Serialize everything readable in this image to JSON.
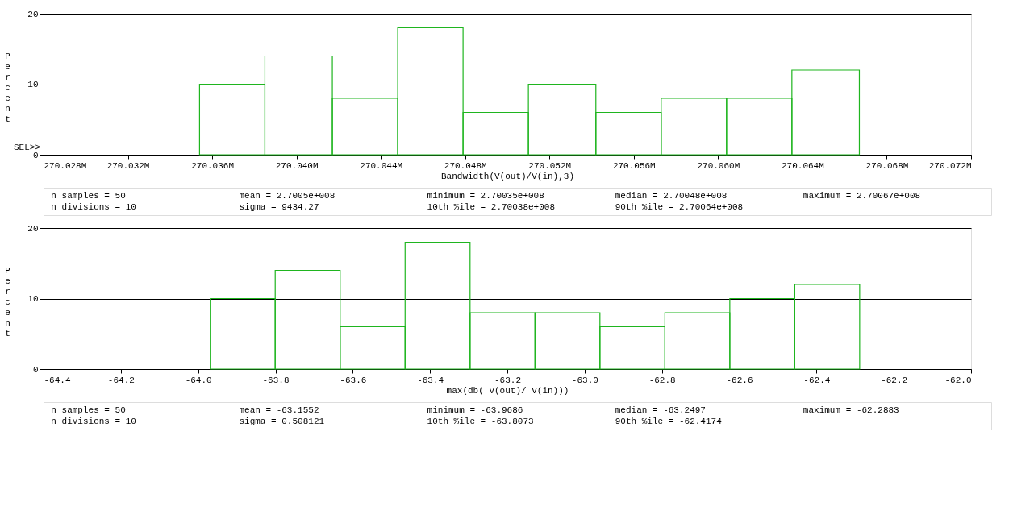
{
  "chart_data": [
    {
      "type": "histogram",
      "xlabel": "Bandwidth(V(out)/V(in),3)",
      "ylabel": "Percent",
      "bins": [
        270.0354,
        270.0385,
        270.0417,
        270.0448,
        270.0479,
        270.051,
        270.0542,
        270.0573,
        270.0604,
        270.0635,
        270.0667
      ],
      "values": [
        10,
        14,
        8,
        18,
        6,
        10,
        6,
        8,
        8,
        12
      ],
      "color": "#1fb51f",
      "xlim": [
        270.028,
        270.072
      ],
      "xticks": [
        {
          "value": 270.028,
          "label": "270.028M"
        },
        {
          "value": 270.032,
          "label": "270.032M"
        },
        {
          "value": 270.036,
          "label": "270.036M"
        },
        {
          "value": 270.04,
          "label": "270.040M"
        },
        {
          "value": 270.044,
          "label": "270.044M"
        },
        {
          "value": 270.048,
          "label": "270.048M"
        },
        {
          "value": 270.052,
          "label": "270.052M"
        },
        {
          "value": 270.056,
          "label": "270.056M"
        },
        {
          "value": 270.06,
          "label": "270.060M"
        },
        {
          "value": 270.064,
          "label": "270.064M"
        },
        {
          "value": 270.068,
          "label": "270.068M"
        },
        {
          "value": 270.072,
          "label": "270.072M"
        }
      ],
      "ylim": [
        0,
        20
      ],
      "yticks": [
        0,
        10,
        20
      ],
      "grid": "y",
      "annotations": [
        "n samples = 50",
        "mean = 2.7005e+008",
        "minimum = 2.70035e+008",
        "median = 2.70048e+008",
        "maximum = 2.70067e+008",
        "n divisions = 10",
        "sigma = 9434.27",
        "10th %ile = 2.70038e+008",
        "90th %ile = 2.70064e+008",
        "SEL>>"
      ]
    },
    {
      "type": "histogram",
      "xlabel": "max(db( V(out)/ V(in)))",
      "ylabel": "Percent",
      "bins": [
        -63.9686,
        -63.8006,
        -63.6325,
        -63.4645,
        -63.2964,
        -63.1284,
        -62.9604,
        -62.7923,
        -62.6243,
        -62.4562,
        -62.2883
      ],
      "values": [
        10,
        14,
        6,
        18,
        8,
        8,
        6,
        8,
        10,
        12
      ],
      "color": "#1fb51f",
      "xlim": [
        -64.4,
        -62.0
      ],
      "xticks": [
        -64.4,
        -64.2,
        {
          "value": -64.0,
          "label": "-64.0"
        },
        -63.8,
        -63.6,
        -63.4,
        -63.2,
        {
          "value": -63.0,
          "label": "-63.0"
        },
        -62.8,
        -62.6,
        -62.4,
        -62.2,
        {
          "value": -62.0,
          "label": "-62.0"
        }
      ],
      "ylim": [
        0,
        20
      ],
      "yticks": [
        0,
        10,
        20
      ],
      "grid": "y",
      "annotations": [
        "n samples = 50",
        "mean = -63.1552",
        "minimum = -63.9686",
        "median = -63.2497",
        "maximum = -62.2883",
        "n divisions = 10",
        "sigma = 0.508121",
        "10th %ile = -63.8073",
        "90th %ile = -62.4174"
      ]
    }
  ]
}
